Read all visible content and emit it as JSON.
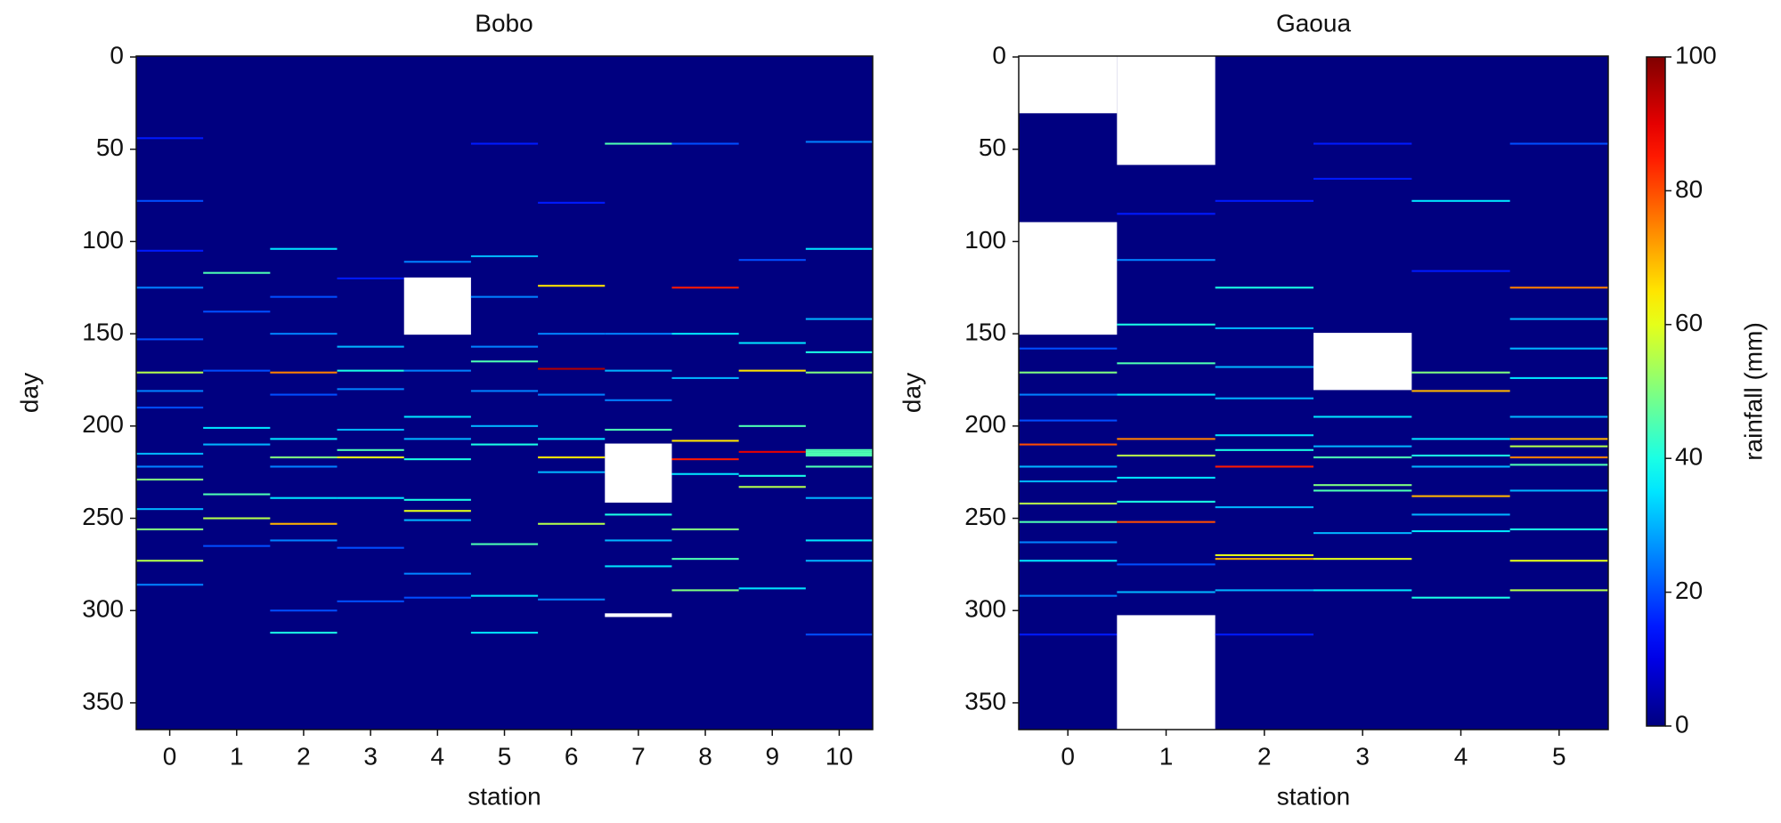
{
  "chart_data": [
    {
      "type": "heatmap",
      "title": "Bobo",
      "xlabel": "station",
      "ylabel": "day",
      "ylim": [
        -0.5,
        364.5
      ],
      "yticks": [
        0,
        50,
        100,
        150,
        200,
        250,
        300,
        350
      ],
      "clim": [
        0,
        100
      ],
      "colormap": "jet",
      "series": [
        {
          "name": "0",
          "days": [
            44,
            78,
            105,
            125,
            153,
            171,
            181,
            190,
            215,
            222,
            229,
            245,
            256,
            273,
            286
          ],
          "values": [
            15,
            20,
            15,
            25,
            20,
            55,
            25,
            20,
            30,
            25,
            50,
            30,
            50,
            55,
            25
          ],
          "missing": []
        },
        {
          "name": "1",
          "days": [
            117,
            138,
            170,
            201,
            210,
            237,
            250,
            265
          ],
          "values": [
            45,
            20,
            20,
            35,
            30,
            45,
            55,
            20
          ],
          "missing": []
        },
        {
          "name": "2",
          "days": [
            104,
            130,
            150,
            171,
            183,
            207,
            217,
            222,
            239,
            253,
            262,
            300,
            312
          ],
          "values": [
            35,
            20,
            25,
            75,
            20,
            35,
            50,
            25,
            35,
            70,
            25,
            20,
            40
          ],
          "missing": []
        },
        {
          "name": "3",
          "days": [
            120,
            157,
            170,
            180,
            202,
            213,
            217,
            239,
            266,
            295
          ],
          "values": [
            15,
            30,
            40,
            25,
            30,
            45,
            60,
            35,
            20,
            20
          ],
          "missing": []
        },
        {
          "name": "4",
          "days": [
            111,
            170,
            195,
            207,
            218,
            240,
            246,
            251,
            280,
            293
          ],
          "values": [
            25,
            25,
            35,
            30,
            40,
            40,
            60,
            30,
            25,
            20
          ],
          "missing": [
            [
              120,
              150
            ]
          ]
        },
        {
          "name": "5",
          "days": [
            47,
            108,
            130,
            157,
            165,
            181,
            200,
            210,
            264,
            292,
            312
          ],
          "values": [
            15,
            30,
            25,
            25,
            45,
            25,
            30,
            40,
            45,
            35,
            35
          ],
          "missing": []
        },
        {
          "name": "6",
          "days": [
            79,
            124,
            150,
            169,
            183,
            207,
            217,
            225,
            253,
            294
          ],
          "values": [
            15,
            65,
            25,
            95,
            25,
            35,
            65,
            30,
            55,
            25
          ],
          "missing": []
        },
        {
          "name": "7",
          "days": [
            47,
            150,
            170,
            186,
            202,
            248,
            262,
            276
          ],
          "values": [
            45,
            25,
            30,
            25,
            45,
            40,
            30,
            35
          ],
          "missing": [
            [
              210,
              241
            ],
            [
              302,
              303
            ]
          ]
        },
        {
          "name": "8",
          "days": [
            47,
            125,
            150,
            174,
            208,
            218,
            226,
            256,
            272,
            289
          ],
          "values": [
            20,
            85,
            35,
            30,
            65,
            85,
            35,
            50,
            45,
            50
          ],
          "missing": []
        },
        {
          "name": "9",
          "days": [
            110,
            155,
            170,
            200,
            214,
            227,
            233,
            288
          ],
          "values": [
            20,
            35,
            65,
            45,
            90,
            40,
            55,
            35
          ],
          "missing": []
        },
        {
          "name": "10",
          "days": [
            46,
            104,
            142,
            160,
            171,
            213,
            214,
            215,
            216,
            222,
            239,
            262,
            273,
            313
          ],
          "values": [
            25,
            35,
            30,
            40,
            50,
            45,
            45,
            45,
            45,
            45,
            30,
            35,
            30,
            20
          ],
          "missing": []
        }
      ]
    },
    {
      "type": "heatmap",
      "title": "Gaoua",
      "xlabel": "station",
      "ylabel": "day",
      "ylim": [
        -0.5,
        364.5
      ],
      "yticks": [
        0,
        50,
        100,
        150,
        200,
        250,
        300,
        350
      ],
      "clim": [
        0,
        100
      ],
      "colormap": "jet",
      "colorbar_label": "rainfall (mm)",
      "colorbar_ticks": [
        0,
        20,
        40,
        60,
        80,
        100
      ],
      "series": [
        {
          "name": "0",
          "days": [
            158,
            171,
            183,
            197,
            210,
            222,
            230,
            242,
            252,
            263,
            273,
            292,
            313
          ],
          "values": [
            20,
            50,
            25,
            20,
            80,
            30,
            30,
            55,
            45,
            25,
            35,
            25,
            15
          ],
          "missing": [
            [
              0,
              30
            ],
            [
              90,
              150
            ]
          ]
        },
        {
          "name": "1",
          "days": [
            85,
            110,
            145,
            166,
            183,
            207,
            216,
            228,
            241,
            252,
            275,
            290
          ],
          "values": [
            15,
            25,
            40,
            45,
            35,
            75,
            55,
            35,
            40,
            80,
            20,
            30
          ],
          "missing": [
            [
              0,
              58
            ],
            [
              303,
              364
            ]
          ]
        },
        {
          "name": "2",
          "days": [
            78,
            125,
            147,
            168,
            185,
            205,
            213,
            222,
            244,
            270,
            272,
            289,
            313
          ],
          "values": [
            15,
            40,
            30,
            30,
            30,
            35,
            40,
            85,
            30,
            60,
            70,
            30,
            15
          ],
          "missing": []
        },
        {
          "name": "3",
          "days": [
            47,
            66,
            195,
            211,
            217,
            232,
            235,
            258,
            272,
            289
          ],
          "values": [
            15,
            15,
            35,
            30,
            45,
            50,
            45,
            30,
            60,
            35
          ],
          "missing": [
            [
              150,
              180
            ]
          ]
        },
        {
          "name": "4",
          "days": [
            78,
            116,
            171,
            181,
            207,
            216,
            222,
            238,
            248,
            257,
            293
          ],
          "values": [
            35,
            15,
            50,
            70,
            35,
            40,
            30,
            70,
            30,
            35,
            40
          ],
          "missing": []
        },
        {
          "name": "5",
          "days": [
            47,
            125,
            142,
            158,
            174,
            195,
            207,
            211,
            217,
            221,
            235,
            256,
            273,
            289
          ],
          "values": [
            20,
            75,
            30,
            30,
            35,
            30,
            70,
            55,
            75,
            45,
            30,
            40,
            60,
            55
          ],
          "missing": []
        }
      ]
    }
  ]
}
